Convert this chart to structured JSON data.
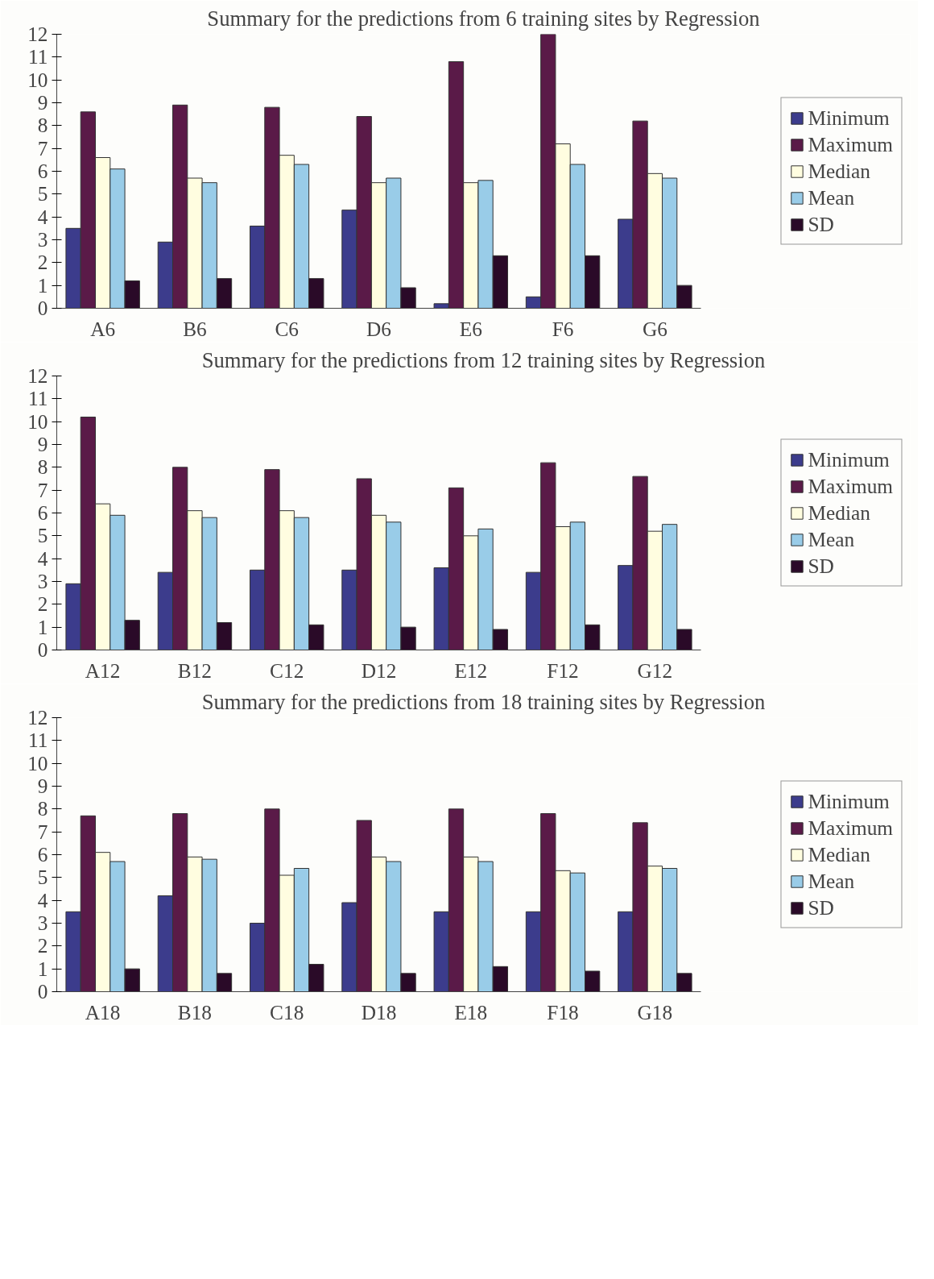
{
  "chart_data": [
    {
      "type": "bar",
      "title": "Summary for the predictions from 6 training sites by Regression",
      "categories": [
        "A6",
        "B6",
        "C6",
        "D6",
        "E6",
        "F6",
        "G6"
      ],
      "ylim": [
        0,
        12
      ],
      "yticks": [
        0,
        1,
        2,
        3,
        4,
        5,
        6,
        7,
        8,
        9,
        10,
        11,
        12
      ],
      "grid": false,
      "legend": "right",
      "series": [
        {
          "name": "Minimum",
          "color": "#3c3c8c",
          "values": [
            3.5,
            2.9,
            3.6,
            4.3,
            0.2,
            0.5,
            3.9
          ]
        },
        {
          "name": "Maximum",
          "color": "#5a1a48",
          "values": [
            8.6,
            8.9,
            8.8,
            8.4,
            10.8,
            12.0,
            8.2
          ]
        },
        {
          "name": "Median",
          "color": "#fffde0",
          "values": [
            6.6,
            5.7,
            6.7,
            5.5,
            5.5,
            7.2,
            5.9
          ]
        },
        {
          "name": "Mean",
          "color": "#99cce8",
          "values": [
            6.1,
            5.5,
            6.3,
            5.7,
            5.6,
            6.3,
            5.7
          ]
        },
        {
          "name": "SD",
          "color": "#2a0a28",
          "values": [
            1.2,
            1.3,
            1.3,
            0.9,
            2.3,
            2.3,
            1.0
          ]
        }
      ]
    },
    {
      "type": "bar",
      "title": "Summary for the predictions from 12 training sites by Regression",
      "categories": [
        "A12",
        "B12",
        "C12",
        "D12",
        "E12",
        "F12",
        "G12"
      ],
      "ylim": [
        0,
        12
      ],
      "yticks": [
        0,
        1,
        2,
        3,
        4,
        5,
        6,
        7,
        8,
        9,
        10,
        11,
        12
      ],
      "grid": false,
      "legend": "right",
      "series": [
        {
          "name": "Minimum",
          "color": "#3c3c8c",
          "values": [
            2.9,
            3.4,
            3.5,
            3.5,
            3.6,
            3.4,
            3.7
          ]
        },
        {
          "name": "Maximum",
          "color": "#5a1a48",
          "values": [
            10.2,
            8.0,
            7.9,
            7.5,
            7.1,
            8.2,
            7.6
          ]
        },
        {
          "name": "Median",
          "color": "#fffde0",
          "values": [
            6.4,
            6.1,
            6.1,
            5.9,
            5.0,
            5.4,
            5.2
          ]
        },
        {
          "name": "Mean",
          "color": "#99cce8",
          "values": [
            5.9,
            5.8,
            5.8,
            5.6,
            5.3,
            5.6,
            5.5
          ]
        },
        {
          "name": "SD",
          "color": "#2a0a28",
          "values": [
            1.3,
            1.2,
            1.1,
            1.0,
            0.9,
            1.1,
            0.9
          ]
        }
      ]
    },
    {
      "type": "bar",
      "title": "Summary for the predictions from 18 training sites by Regression",
      "categories": [
        "A18",
        "B18",
        "C18",
        "D18",
        "E18",
        "F18",
        "G18"
      ],
      "ylim": [
        0,
        12
      ],
      "yticks": [
        0,
        1,
        2,
        3,
        4,
        5,
        6,
        7,
        8,
        9,
        10,
        11,
        12
      ],
      "grid": false,
      "legend": "right",
      "series": [
        {
          "name": "Minimum",
          "color": "#3c3c8c",
          "values": [
            3.5,
            4.2,
            3.0,
            3.9,
            3.5,
            3.5,
            3.5
          ]
        },
        {
          "name": "Maximum",
          "color": "#5a1a48",
          "values": [
            7.7,
            7.8,
            8.0,
            7.5,
            8.0,
            7.8,
            7.4
          ]
        },
        {
          "name": "Median",
          "color": "#fffde0",
          "values": [
            6.1,
            5.9,
            5.1,
            5.9,
            5.9,
            5.3,
            5.5
          ]
        },
        {
          "name": "Mean",
          "color": "#99cce8",
          "values": [
            5.7,
            5.8,
            5.4,
            5.7,
            5.7,
            5.2,
            5.4
          ]
        },
        {
          "name": "SD",
          "color": "#2a0a28",
          "values": [
            1.0,
            0.8,
            1.2,
            0.8,
            1.1,
            0.9,
            0.8
          ]
        }
      ]
    }
  ]
}
